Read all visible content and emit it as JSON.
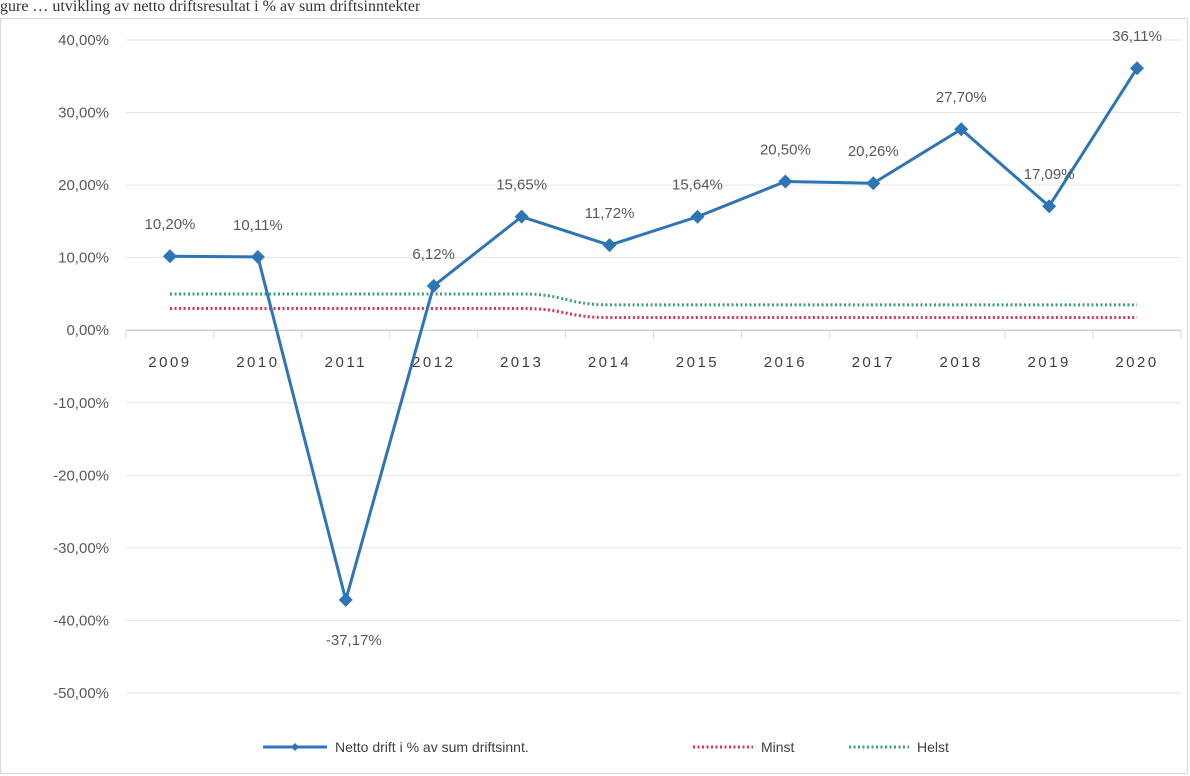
{
  "caption": "gure … utvikling av netto driftsresultat i % av sum driftsinntekter",
  "chart_data": {
    "type": "line",
    "categories": [
      "2009",
      "2010",
      "2011",
      "2012",
      "2013",
      "2014",
      "2015",
      "2016",
      "2017",
      "2018",
      "2019",
      "2020"
    ],
    "ylim": [
      -50,
      40
    ],
    "yticks": [
      40,
      30,
      20,
      10,
      0,
      -10,
      -20,
      -30,
      -40,
      -50
    ],
    "ytick_labels": [
      "40,00%",
      "30,00%",
      "20,00%",
      "10,00%",
      "0,00%",
      "-10,00%",
      "-20,00%",
      "-30,00%",
      "-40,00%",
      "-50,00%"
    ],
    "grid": "horizontal",
    "legend_position": "bottom",
    "series": [
      {
        "name": "Netto drift i % av sum driftsinnt.",
        "color": "#2e75b6",
        "style": "solid-with-diamond-markers",
        "values": [
          10.2,
          10.11,
          -37.17,
          6.12,
          15.65,
          11.72,
          15.64,
          20.5,
          20.26,
          27.7,
          17.09,
          36.11
        ],
        "labels": [
          "10,20%",
          "10,11%",
          "-37,17%",
          "6,12%",
          "15,65%",
          "11,72%",
          "15,64%",
          "20,50%",
          "20,26%",
          "27,70%",
          "17,09%",
          "36,11%"
        ]
      },
      {
        "name": "Minst",
        "color": "#e0304d",
        "style": "dotted",
        "values": [
          3,
          3,
          3,
          3,
          3,
          1.75,
          1.75,
          1.75,
          1.75,
          1.75,
          1.75,
          1.75
        ]
      },
      {
        "name": "Helst",
        "color": "#3aa072",
        "style": "dotted",
        "values": [
          5,
          5,
          5,
          5,
          5,
          3.5,
          3.5,
          3.5,
          3.5,
          3.5,
          3.5,
          3.5
        ]
      }
    ]
  }
}
